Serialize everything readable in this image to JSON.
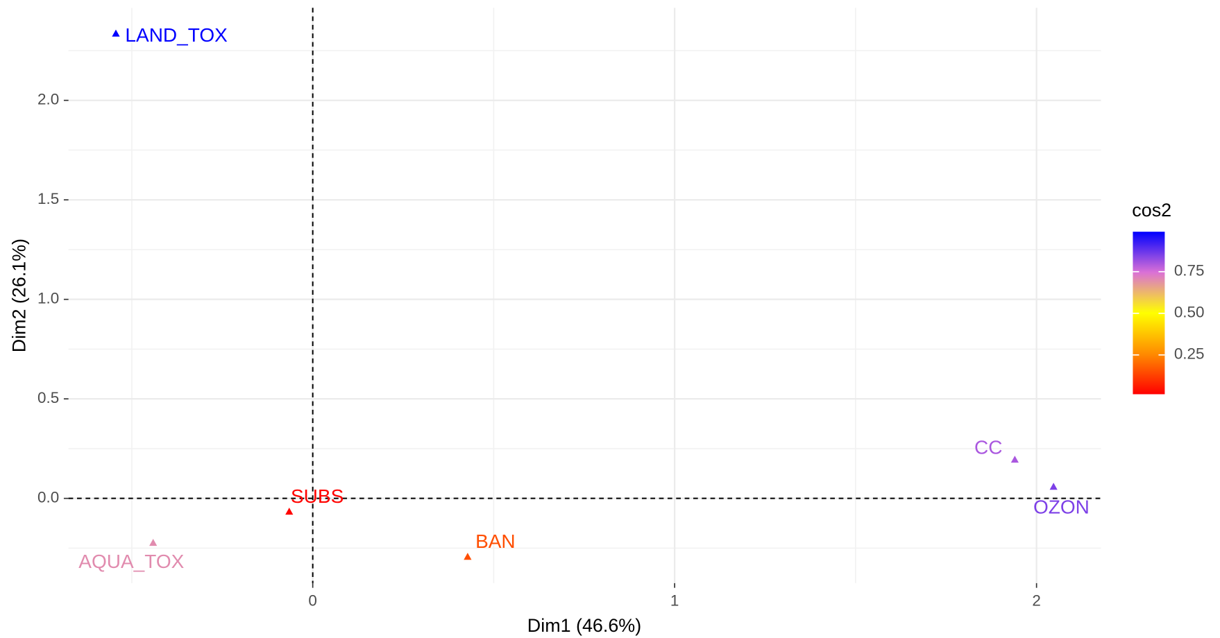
{
  "chart_data": {
    "type": "scatter",
    "xlabel": "Dim1 (46.6%)",
    "ylabel": "Dim2 (26.1%)",
    "points": {
      "labels": [
        "LAND_TOX",
        "AQUA_TOX",
        "SUBS",
        "BAN",
        "CC",
        "OZON"
      ],
      "x": [
        -0.544,
        -0.441,
        -0.065,
        0.428,
        1.94,
        2.047
      ],
      "y": [
        2.336,
        -0.223,
        -0.066,
        -0.293,
        0.195,
        0.059
      ],
      "cos2": [
        0.99,
        0.7,
        0.02,
        0.15,
        0.8,
        0.85
      ]
    },
    "xlim": [
      -0.675,
      2.178
    ],
    "ylim": [
      -0.426,
      2.465
    ],
    "xticks": [
      0,
      1,
      2
    ],
    "xminor": [
      -0.5,
      0.5,
      1.5
    ],
    "yticks": [
      {
        "value": 0,
        "label": "0.0"
      },
      {
        "value": 0.5,
        "label": "0.5"
      },
      {
        "value": 1,
        "label": "1.0"
      },
      {
        "value": 1.5,
        "label": "1.5"
      },
      {
        "value": 2,
        "label": "2.0"
      }
    ],
    "yminor": [
      -0.25,
      0.25,
      0.75,
      1.25,
      1.75,
      2.25
    ],
    "grid": true,
    "legend": {
      "title": "cos2",
      "position": "right",
      "colorlim": [
        0.014,
        0.99
      ],
      "ticks": [
        0.25,
        {
          "value": 0.5,
          "label": "0.50"
        },
        0.75
      ],
      "gradient": [
        "#ff0000",
        "#ff8c00",
        "#ffff00",
        "#da70d6",
        "#0000ff"
      ]
    }
  }
}
